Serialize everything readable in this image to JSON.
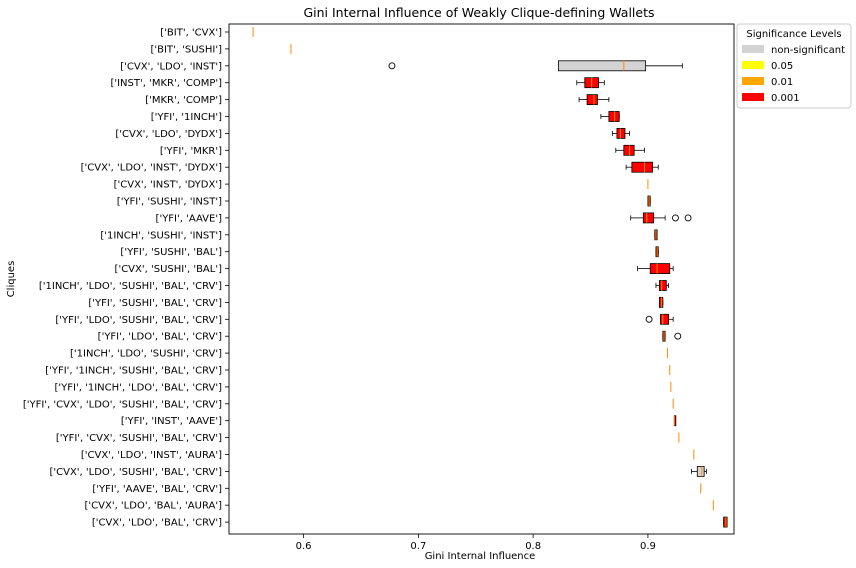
{
  "chart_data": {
    "type": "boxplot",
    "orientation": "horizontal",
    "title": "Gini Internal Influence of Weakly Clique-defining Wallets",
    "xlabel": "Gini Internal Influence",
    "ylabel": "Cliques",
    "xlim": [
      0.535,
      0.975
    ],
    "xticks": [
      0.6,
      0.7,
      0.8,
      0.9
    ],
    "xtick_labels": [
      "0.6",
      "0.7",
      "0.8",
      "0.9"
    ],
    "median_color": "#ff8c00",
    "legend": {
      "title": "Significance Levels",
      "placement": "outside-top-right",
      "entries": [
        {
          "label": "non-significant",
          "color": "#d3d3d3"
        },
        {
          "label": "0.05",
          "color": "#ffff00"
        },
        {
          "label": "0.01",
          "color": "#ffa500"
        },
        {
          "label": "0.001",
          "color": "#ff0000"
        }
      ]
    },
    "boxes": [
      {
        "label": "['BIT', 'CVX']",
        "sig": "none",
        "wlo": 0.556,
        "q1": 0.556,
        "med": 0.556,
        "q3": 0.556,
        "whi": 0.556,
        "outliers": []
      },
      {
        "label": "['BIT', 'SUSHI']",
        "sig": "none",
        "wlo": 0.589,
        "q1": 0.589,
        "med": 0.589,
        "q3": 0.589,
        "whi": 0.589,
        "outliers": []
      },
      {
        "label": "['CVX', 'LDO', 'INST']",
        "sig": "ns",
        "wlo": 0.822,
        "q1": 0.822,
        "med": 0.879,
        "q3": 0.898,
        "whi": 0.93,
        "outliers": [
          0.677
        ]
      },
      {
        "label": "['INST', 'MKR', 'COMP']",
        "sig": "0.001",
        "wlo": 0.838,
        "q1": 0.845,
        "med": 0.851,
        "q3": 0.857,
        "whi": 0.862,
        "outliers": []
      },
      {
        "label": "['MKR', 'COMP']",
        "sig": "0.001",
        "wlo": 0.84,
        "q1": 0.847,
        "med": 0.853,
        "q3": 0.856,
        "whi": 0.866,
        "outliers": []
      },
      {
        "label": "['YFI', '1INCH']",
        "sig": "0.001",
        "wlo": 0.859,
        "q1": 0.866,
        "med": 0.871,
        "q3": 0.875,
        "whi": 0.875,
        "outliers": []
      },
      {
        "label": "['CVX', 'LDO', 'DYDX']",
        "sig": "0.001",
        "wlo": 0.869,
        "q1": 0.873,
        "med": 0.876,
        "q3": 0.88,
        "whi": 0.884,
        "outliers": []
      },
      {
        "label": "['YFI', 'MKR']",
        "sig": "0.001",
        "wlo": 0.872,
        "q1": 0.879,
        "med": 0.884,
        "q3": 0.888,
        "whi": 0.897,
        "outliers": []
      },
      {
        "label": "['CVX', 'LDO', 'INST', 'DYDX']",
        "sig": "0.001",
        "wlo": 0.881,
        "q1": 0.886,
        "med": 0.897,
        "q3": 0.904,
        "whi": 0.909,
        "outliers": []
      },
      {
        "label": "['CVX', 'INST', 'DYDX']",
        "sig": "none",
        "wlo": 0.9,
        "q1": 0.9,
        "med": 0.9,
        "q3": 0.9,
        "whi": 0.9,
        "outliers": []
      },
      {
        "label": "['YFI', 'SUSHI', 'INST']",
        "sig": "0.001",
        "wlo": 0.9,
        "q1": 0.9,
        "med": 0.901,
        "q3": 0.902,
        "whi": 0.902,
        "outliers": []
      },
      {
        "label": "['YFI', 'AAVE']",
        "sig": "0.001",
        "wlo": 0.885,
        "q1": 0.896,
        "med": 0.899,
        "q3": 0.905,
        "whi": 0.915,
        "outliers": [
          0.924,
          0.935
        ]
      },
      {
        "label": "['1INCH', 'SUSHI', 'INST']",
        "sig": "0.001",
        "wlo": 0.906,
        "q1": 0.906,
        "med": 0.907,
        "q3": 0.908,
        "whi": 0.908,
        "outliers": []
      },
      {
        "label": "['YFI', 'SUSHI', 'BAL']",
        "sig": "0.001",
        "wlo": 0.907,
        "q1": 0.907,
        "med": 0.908,
        "q3": 0.909,
        "whi": 0.909,
        "outliers": []
      },
      {
        "label": "['CVX', 'SUSHI', 'BAL']",
        "sig": "0.001",
        "wlo": 0.891,
        "q1": 0.902,
        "med": 0.908,
        "q3": 0.919,
        "whi": 0.922,
        "outliers": []
      },
      {
        "label": "['1INCH', 'LDO', 'SUSHI', 'BAL', 'CRV']",
        "sig": "0.001",
        "wlo": 0.907,
        "q1": 0.91,
        "med": 0.912,
        "q3": 0.916,
        "whi": 0.918,
        "outliers": []
      },
      {
        "label": "['YFI', 'SUSHI', 'BAL', 'CRV']",
        "sig": "0.001",
        "wlo": 0.91,
        "q1": 0.91,
        "med": 0.912,
        "q3": 0.913,
        "whi": 0.913,
        "outliers": []
      },
      {
        "label": "['YFI', 'LDO', 'SUSHI', 'BAL', 'CRV']",
        "sig": "0.001",
        "wlo": 0.911,
        "q1": 0.911,
        "med": 0.913,
        "q3": 0.918,
        "whi": 0.922,
        "outliers": [
          0.901
        ]
      },
      {
        "label": "['YFI', 'LDO', 'BAL', 'CRV']",
        "sig": "0.001",
        "wlo": 0.913,
        "q1": 0.913,
        "med": 0.914,
        "q3": 0.915,
        "whi": 0.915,
        "outliers": [
          0.926
        ]
      },
      {
        "label": "['1INCH', 'LDO', 'SUSHI', 'CRV']",
        "sig": "none",
        "wlo": 0.917,
        "q1": 0.917,
        "med": 0.917,
        "q3": 0.917,
        "whi": 0.917,
        "outliers": []
      },
      {
        "label": "['YFI', '1INCH', 'SUSHI', 'BAL', 'CRV']",
        "sig": "none",
        "wlo": 0.919,
        "q1": 0.919,
        "med": 0.919,
        "q3": 0.919,
        "whi": 0.919,
        "outliers": []
      },
      {
        "label": "['YFI', '1INCH', 'LDO', 'BAL', 'CRV']",
        "sig": "none",
        "wlo": 0.92,
        "q1": 0.92,
        "med": 0.92,
        "q3": 0.92,
        "whi": 0.92,
        "outliers": []
      },
      {
        "label": "['YFI', 'CVX', 'LDO', 'SUSHI', 'BAL', 'CRV']",
        "sig": "none",
        "wlo": 0.922,
        "q1": 0.922,
        "med": 0.922,
        "q3": 0.922,
        "whi": 0.922,
        "outliers": []
      },
      {
        "label": "['YFI', 'INST', 'AAVE']",
        "sig": "0.001",
        "wlo": 0.923,
        "q1": 0.923,
        "med": 0.923,
        "q3": 0.924,
        "whi": 0.924,
        "outliers": []
      },
      {
        "label": "['YFI', 'CVX', 'SUSHI', 'BAL', 'CRV']",
        "sig": "none",
        "wlo": 0.927,
        "q1": 0.927,
        "med": 0.927,
        "q3": 0.927,
        "whi": 0.927,
        "outliers": []
      },
      {
        "label": "['CVX', 'LDO', 'INST', 'AURA']",
        "sig": "none",
        "wlo": 0.94,
        "q1": 0.94,
        "med": 0.94,
        "q3": 0.94,
        "whi": 0.94,
        "outliers": []
      },
      {
        "label": "['CVX', 'LDO', 'SUSHI', 'BAL', 'CRV']",
        "sig": "ns",
        "wlo": 0.938,
        "q1": 0.943,
        "med": 0.947,
        "q3": 0.949,
        "whi": 0.951,
        "outliers": []
      },
      {
        "label": "['YFI', 'AAVE', 'BAL', 'CRV']",
        "sig": "none",
        "wlo": 0.946,
        "q1": 0.946,
        "med": 0.946,
        "q3": 0.946,
        "whi": 0.946,
        "outliers": []
      },
      {
        "label": "['CVX', 'LDO', 'BAL', 'AURA']",
        "sig": "none",
        "wlo": 0.957,
        "q1": 0.957,
        "med": 0.957,
        "q3": 0.957,
        "whi": 0.957,
        "outliers": []
      },
      {
        "label": "['CVX', 'LDO', 'BAL', 'CRV']",
        "sig": "0.001",
        "wlo": 0.966,
        "q1": 0.966,
        "med": 0.968,
        "q3": 0.969,
        "whi": 0.969,
        "outliers": []
      }
    ]
  }
}
